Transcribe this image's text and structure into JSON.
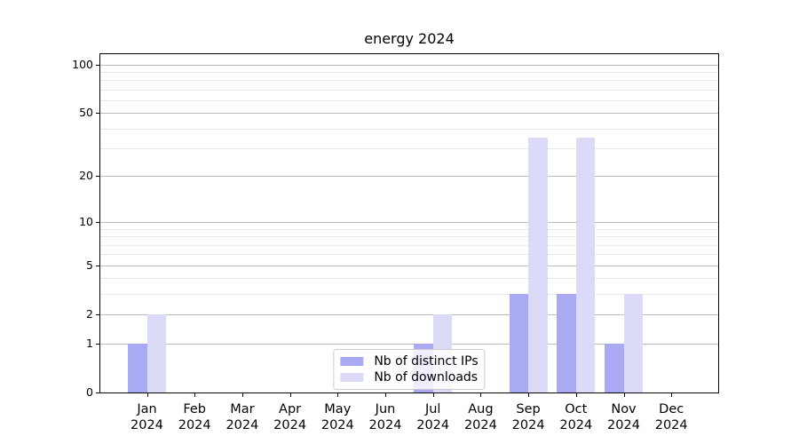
{
  "chart_data": {
    "type": "bar",
    "title": "energy 2024",
    "categories": [
      "Jan\n2024",
      "Feb\n2024",
      "Mar\n2024",
      "Apr\n2024",
      "May\n2024",
      "Jun\n2024",
      "Jul\n2024",
      "Aug\n2024",
      "Sep\n2024",
      "Oct\n2024",
      "Nov\n2024",
      "Dec\n2024"
    ],
    "series": [
      {
        "name": "Nb of distinct IPs",
        "color": "#a9a9f4",
        "values": [
          1,
          0,
          0,
          0,
          0,
          0,
          1,
          0,
          3,
          3,
          1,
          0
        ]
      },
      {
        "name": "Nb of downloads",
        "color": "#dbdbf8",
        "values": [
          2,
          0,
          0,
          0,
          0,
          0,
          2,
          0,
          35,
          35,
          3,
          0
        ]
      }
    ],
    "xlabel": "",
    "ylabel": "",
    "yscale": "log1p",
    "ylim": [
      0,
      116
    ],
    "yticks_major": [
      0,
      1,
      2,
      5,
      10,
      20,
      50,
      100
    ],
    "yticks_minor": [
      3,
      4,
      6,
      7,
      8,
      9,
      30,
      40,
      60,
      70,
      80,
      90
    ],
    "grid": true,
    "legend_position": "lower center",
    "colors": {
      "grid_major": "#bababa",
      "grid_minor": "#e9e9e9",
      "spine": "#000000",
      "legend_border": "#cccccc"
    }
  }
}
